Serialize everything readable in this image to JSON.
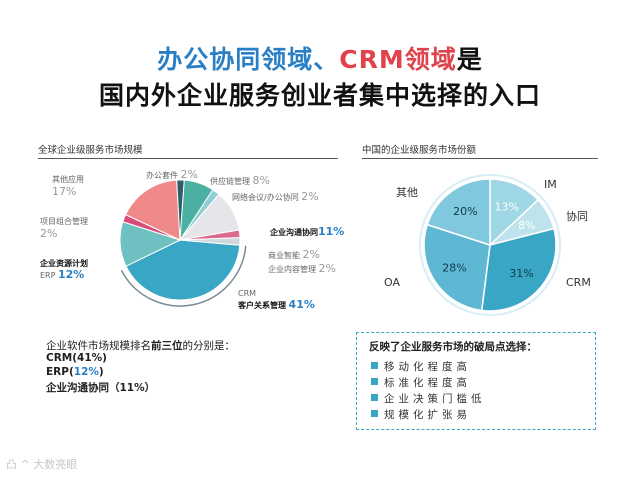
{
  "title": {
    "part1": "办公协同领域、",
    "part2": "CRM领域",
    "part3": "是",
    "line2": "国内外企业服务创业者集中选择的入口"
  },
  "left_section_title": "全球企业级服务市场规模",
  "right_section_title": "中国的企业级服务市场份额",
  "summary": {
    "line1_a": "企业软件市场规模排名",
    "line1_b": "前三位",
    "line1_c": "的分别是：",
    "line2": "CRM(41%)",
    "line3_a": "ERP(",
    "line3_b": "12%",
    "line3_c": ")",
    "line4": "企业沟通协同（11%）"
  },
  "box": {
    "heading": "反映了企业服务市场的破局点选择：",
    "items": [
      "移动化程度高",
      "标准化程度高",
      "企业决策门槛低",
      "规模化扩张易"
    ]
  },
  "footer": "凸 ^ 大数亮眼",
  "colors": {
    "accent_blue": "#2a7fc4",
    "accent_red": "#e0434b",
    "crm": "#3aa6c6",
    "erp": "#6ec1c0",
    "other": "#f08a8a",
    "project": "#d84b77",
    "office": "#2f5d6b",
    "supply": "#4bb0a1",
    "comm": "#e6e6ea",
    "bi": "#d96b8f"
  },
  "chart_data": [
    {
      "type": "pie",
      "title": "全球企业级服务市场规模",
      "series": [
        {
          "values": [
            {
              "label": "CRM 客户关系管理",
              "value": 41
            },
            {
              "label": "企业资源计划 ERP",
              "value": 12
            },
            {
              "label": "项目组合管理",
              "value": 2
            },
            {
              "label": "其他应用",
              "value": 17
            },
            {
              "label": "办公套件",
              "value": 2
            },
            {
              "label": "供应链管理",
              "value": 8
            },
            {
              "label": "网络会议/办公协同",
              "value": 2
            },
            {
              "label": "企业沟通协同",
              "value": 11
            },
            {
              "label": "商业智能",
              "value": 2
            },
            {
              "label": "企业内容管理",
              "value": 2
            }
          ]
        }
      ],
      "label_texts": {
        "other": "其他应用",
        "other_pct": "17%",
        "office": "办公套件",
        "office_pct": "2%",
        "supply": "供应链管理",
        "supply_pct": "8%",
        "conf": "网络会议/办公协同",
        "conf_pct": "2%",
        "project": "项目组合管理",
        "project_pct": "2%",
        "comm": "企业沟通协同",
        "comm_pct": "11%",
        "bi": "商业智能",
        "bi_pct": "2%",
        "ecm": "企业内容管理",
        "ecm_pct": "2%",
        "erp_cn": "企业资源计划",
        "erp_en": "ERP",
        "erp_pct": "12%",
        "crm_en": "CRM",
        "crm_cn": "客户关系管理",
        "crm_pct": "41%"
      }
    },
    {
      "type": "pie",
      "title": "中国的企业级服务市场份额",
      "series": [
        {
          "values": [
            {
              "label": "IM",
              "value": 13
            },
            {
              "label": "协同",
              "value": 8
            },
            {
              "label": "CRM",
              "value": 31
            },
            {
              "label": "OA",
              "value": 28
            },
            {
              "label": "其他",
              "value": 20
            }
          ]
        }
      ]
    }
  ]
}
